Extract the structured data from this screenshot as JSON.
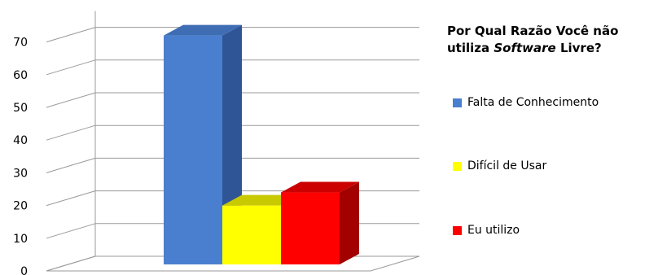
{
  "chart_data": {
    "type": "bar",
    "title_parts": [
      "Por Qual Razão Você não utiliza ",
      "Software",
      " Livre?"
    ],
    "categories": [
      ""
    ],
    "series": [
      {
        "name": "Falta de Conhecimento",
        "values": [
          70
        ],
        "color": "#4A7FD0",
        "top_color": "#3F6DB4",
        "side_color": "#2F5597"
      },
      {
        "name": "Difícil de Usar",
        "values": [
          18
        ],
        "color": "#FFFF00",
        "top_color": "#C9C900",
        "side_color": "#B3B300"
      },
      {
        "name": "Eu utilizo",
        "values": [
          22
        ],
        "color": "#FF0000",
        "top_color": "#CC0000",
        "side_color": "#A30000"
      }
    ],
    "yticks": [
      0,
      10,
      20,
      30,
      40,
      50,
      60,
      70
    ],
    "ylim": [
      0,
      75
    ],
    "grid": true,
    "legend_position": "right",
    "style": "3d-column"
  }
}
